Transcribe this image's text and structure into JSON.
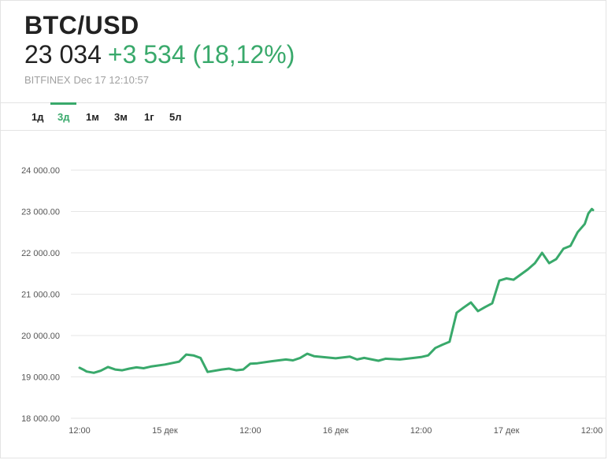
{
  "header": {
    "pair": "BTC/USD",
    "price": "23 034",
    "change": "+3 534 (18,12%)",
    "exchange": "BITFINEX",
    "timestamp": "Dec 17 12:10:57"
  },
  "tabs": [
    {
      "label": "1д",
      "active": false
    },
    {
      "label": "3д",
      "active": true
    },
    {
      "label": "1м",
      "active": false
    },
    {
      "label": "3м",
      "active": false
    },
    {
      "label": "1г",
      "active": false
    },
    {
      "label": "5л",
      "active": false
    }
  ],
  "colors": {
    "accent": "#39a96b",
    "grid": "#e6e6e6",
    "text": "#222222"
  },
  "chart_data": {
    "type": "line",
    "title": "",
    "xlabel": "",
    "ylabel": "",
    "ylim": [
      18000,
      24000
    ],
    "yticks": [
      "24 000.00",
      "23 000.00",
      "22 000.00",
      "21 000.00",
      "20 000.00",
      "19 000.00",
      "18 000.00"
    ],
    "ytick_values": [
      24000,
      23000,
      22000,
      21000,
      20000,
      19000,
      18000
    ],
    "xticks": [
      "12:00",
      "15 дек",
      "12:00",
      "16 дек",
      "12:00",
      "17 дек",
      "12:00"
    ],
    "xlim": [
      "2020-12-14 12:00",
      "2020-12-17 12:10"
    ],
    "grid": true,
    "series": [
      {
        "x": [
          "2020-12-14 12:00",
          "2020-12-14 12:30",
          "2020-12-14 13:00",
          "2020-12-14 14:00",
          "2020-12-14 15:00",
          "2020-12-14 16:00",
          "2020-12-14 17:00",
          "2020-12-14 18:00",
          "2020-12-14 19:00",
          "2020-12-14 20:00",
          "2020-12-14 21:00",
          "2020-12-14 22:00",
          "2020-12-15 00:00",
          "2020-12-15 02:00",
          "2020-12-15 03:00",
          "2020-12-15 04:00",
          "2020-12-15 05:00",
          "2020-12-15 06:00",
          "2020-12-15 08:00",
          "2020-12-15 09:00",
          "2020-12-15 10:00",
          "2020-12-15 11:00",
          "2020-12-15 12:00",
          "2020-12-15 13:00",
          "2020-12-15 15:00",
          "2020-12-15 17:00",
          "2020-12-15 18:00",
          "2020-12-15 19:00",
          "2020-12-15 20:00",
          "2020-12-15 21:00",
          "2020-12-16 00:00",
          "2020-12-16 02:00",
          "2020-12-16 03:00",
          "2020-12-16 04:00",
          "2020-12-16 06:00",
          "2020-12-16 07:00",
          "2020-12-16 09:00",
          "2020-12-16 11:00",
          "2020-12-16 12:00",
          "2020-12-16 13:00",
          "2020-12-16 14:00",
          "2020-12-16 15:00",
          "2020-12-16 16:00",
          "2020-12-16 17:00",
          "2020-12-16 18:00",
          "2020-12-16 19:00",
          "2020-12-16 20:00",
          "2020-12-16 21:00",
          "2020-12-16 22:00",
          "2020-12-16 23:00",
          "2020-12-17 00:00",
          "2020-12-17 01:00",
          "2020-12-17 03:00",
          "2020-12-17 04:00",
          "2020-12-17 05:00",
          "2020-12-17 06:00",
          "2020-12-17 07:00",
          "2020-12-17 08:00",
          "2020-12-17 09:00",
          "2020-12-17 10:00",
          "2020-12-17 11:00",
          "2020-12-17 11:30",
          "2020-12-17 12:00",
          "2020-12-17 12:10"
        ],
        "y": [
          19220,
          19180,
          19130,
          19100,
          19150,
          19240,
          19180,
          19160,
          19200,
          19230,
          19210,
          19250,
          19300,
          19370,
          19540,
          19520,
          19460,
          19120,
          19180,
          19200,
          19160,
          19180,
          19320,
          19330,
          19380,
          19420,
          19400,
          19460,
          19560,
          19500,
          19450,
          19490,
          19420,
          19460,
          19390,
          19440,
          19420,
          19460,
          19480,
          19520,
          19700,
          19780,
          19850,
          20550,
          20680,
          20800,
          20590,
          20690,
          20780,
          21330,
          21380,
          21350,
          21600,
          21750,
          22000,
          21750,
          21850,
          22100,
          22170,
          22500,
          22700,
          22950,
          23060,
          23034
        ]
      }
    ]
  }
}
